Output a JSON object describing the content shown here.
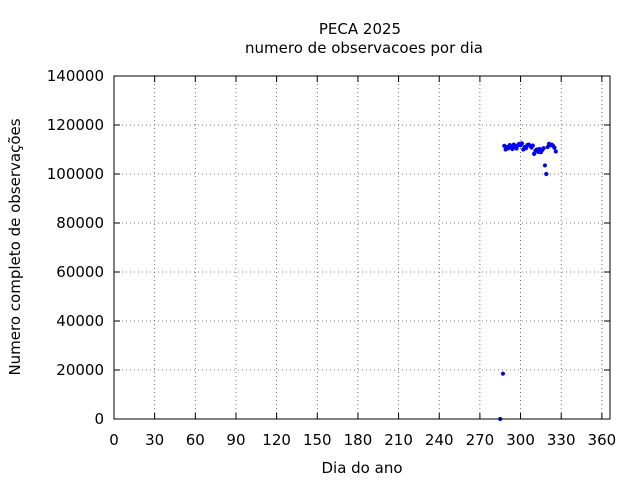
{
  "chart_data": {
    "type": "scatter",
    "title": "PECA 2025",
    "subtitle": "numero de observacoes por dia",
    "xlabel": "Dia do ano",
    "ylabel": "Numero completo de observações",
    "xlim": [
      0,
      366
    ],
    "ylim": [
      0,
      140000
    ],
    "xticks": [
      0,
      30,
      60,
      90,
      120,
      150,
      180,
      210,
      240,
      270,
      300,
      330,
      360
    ],
    "yticks": [
      0,
      20000,
      40000,
      60000,
      80000,
      100000,
      120000,
      140000
    ],
    "grid": true,
    "marker_color": "#0000ff",
    "series": [
      {
        "x": [
          285,
          287,
          288,
          289,
          290,
          291,
          292,
          293,
          294,
          295,
          296,
          297,
          298,
          299,
          300,
          301,
          302,
          303,
          304,
          305,
          306,
          307,
          308,
          309,
          310,
          311,
          312,
          313,
          314,
          315,
          316,
          317,
          318,
          319,
          320,
          321,
          322,
          323,
          324,
          325,
          326
        ],
        "y": [
          0,
          18500,
          111500,
          110000,
          111000,
          110500,
          111800,
          111200,
          110200,
          112000,
          111300,
          110400,
          111700,
          112300,
          111800,
          112500,
          110000,
          111000,
          110500,
          111800,
          112000,
          111500,
          110800,
          111600,
          108200,
          109500,
          110000,
          109000,
          110200,
          108900,
          109800,
          110500,
          103500,
          100000,
          111000,
          112300,
          111800,
          112000,
          111500,
          110700,
          109200
        ]
      }
    ]
  }
}
